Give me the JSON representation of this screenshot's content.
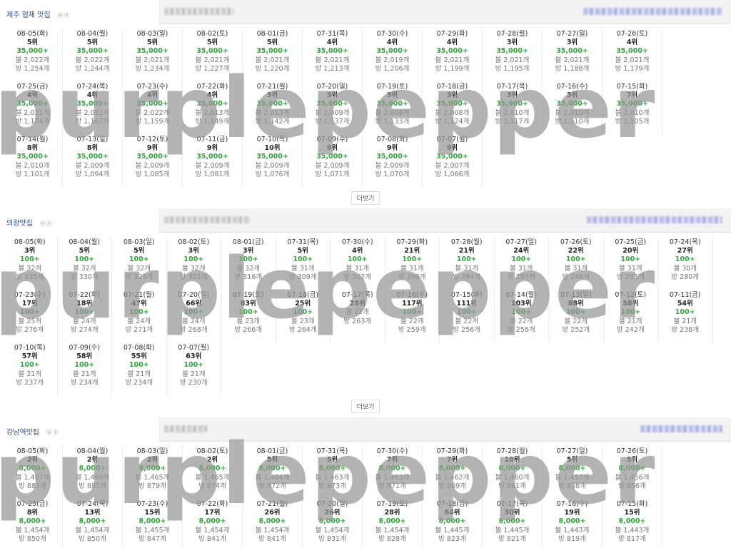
{
  "more_label": "더보기",
  "watermark_text": "purplepepper",
  "sections": [
    {
      "title": "제주 협재 맛집",
      "icons": "ⓜⓟ",
      "cols": 11,
      "has_more": true,
      "cells": [
        {
          "date": "08-05(화)",
          "rank": "5위",
          "search": "35,000+",
          "blog": "블 2,022개",
          "cafe": "방 1,254개"
        },
        {
          "date": "08-04(월)",
          "rank": "5위",
          "search": "35,000+",
          "blog": "블 2,022개",
          "cafe": "방 1,244개"
        },
        {
          "date": "08-03(일)",
          "rank": "5위",
          "search": "35,000+",
          "blog": "블 2,021개",
          "cafe": "방 1,234개"
        },
        {
          "date": "08-02(토)",
          "rank": "5위",
          "search": "35,000+",
          "blog": "블 2,021개",
          "cafe": "방 1,227개"
        },
        {
          "date": "08-01(금)",
          "rank": "5위",
          "search": "35,000+",
          "blog": "블 2,021개",
          "cafe": "방 1,220개"
        },
        {
          "date": "07-31(목)",
          "rank": "4위",
          "search": "35,000+",
          "blog": "블 2,021개",
          "cafe": "방 1,213개"
        },
        {
          "date": "07-30(수)",
          "rank": "4위",
          "search": "35,000+",
          "blog": "블 2,019개",
          "cafe": "방 1,206개"
        },
        {
          "date": "07-29(화)",
          "rank": "4위",
          "search": "35,000+",
          "blog": "블 2,021개",
          "cafe": "방 1,199개"
        },
        {
          "date": "07-28(월)",
          "rank": "3위",
          "search": "35,000+",
          "blog": "블 2,021개",
          "cafe": "방 1,195개"
        },
        {
          "date": "07-27(일)",
          "rank": "3위",
          "search": "35,000+",
          "blog": "블 2,021개",
          "cafe": "방 1,188개"
        },
        {
          "date": "07-26(토)",
          "rank": "4위",
          "search": "35,000+",
          "blog": "블 2,021개",
          "cafe": "방 1,179개"
        },
        {
          "date": "07-25(금)",
          "rank": "4위",
          "search": "35,000+",
          "blog": "블 2,021개",
          "cafe": "방 1,174개"
        },
        {
          "date": "07-24(목)",
          "rank": "4위",
          "search": "35,000+",
          "blog": "블 2,022개",
          "cafe": "방 1,167개"
        },
        {
          "date": "07-23(수)",
          "rank": "4위",
          "search": "35,000+",
          "blog": "블 2,022개",
          "cafe": "방 1,159개"
        },
        {
          "date": "07-22(화)",
          "rank": "4위",
          "search": "35,000+",
          "blog": "블 2,013개",
          "cafe": "방 1,149개"
        },
        {
          "date": "07-21(월)",
          "rank": "3위",
          "search": "35,000+",
          "blog": "블 2,013개",
          "cafe": "방 1,142개"
        },
        {
          "date": "07-20(일)",
          "rank": "3위",
          "search": "35,000+",
          "blog": "블 2,009개",
          "cafe": "방 1,137개"
        },
        {
          "date": "07-19(토)",
          "rank": "3위",
          "search": "35,000+",
          "blog": "블 2,008개",
          "cafe": "방 1,133개"
        },
        {
          "date": "07-18(금)",
          "rank": "3위",
          "search": "35,000+",
          "blog": "블 2,008개",
          "cafe": "방 1,124개"
        },
        {
          "date": "07-17(목)",
          "rank": "3위",
          "search": "35,000+",
          "blog": "블 2,010개",
          "cafe": "방 1,117개"
        },
        {
          "date": "07-16(수)",
          "rank": "3위",
          "search": "35,000+",
          "blog": "블 2,010개",
          "cafe": "방 1,110개"
        },
        {
          "date": "07-15(화)",
          "rank": "7위",
          "search": "35,000+",
          "blog": "블 2,010개",
          "cafe": "방 1,105개"
        },
        {
          "date": "07-14(월)",
          "rank": "8위",
          "search": "35,000+",
          "blog": "블 2,010개",
          "cafe": "방 1,101개"
        },
        {
          "date": "07-13(일)",
          "rank": "8위",
          "search": "35,000+",
          "blog": "블 2,009개",
          "cafe": "방 1,094개"
        },
        {
          "date": "07-12(토)",
          "rank": "9위",
          "search": "35,000+",
          "blog": "블 2,009개",
          "cafe": "방 1,085개"
        },
        {
          "date": "07-11(금)",
          "rank": "9위",
          "search": "35,000+",
          "blog": "블 2,009개",
          "cafe": "방 1,081개"
        },
        {
          "date": "07-10(목)",
          "rank": "10위",
          "search": "35,000+",
          "blog": "블 2,009개",
          "cafe": "방 1,076개"
        },
        {
          "date": "07-09(수)",
          "rank": "9위",
          "search": "35,000+",
          "blog": "블 2,009개",
          "cafe": "방 1,071개"
        },
        {
          "date": "07-08(화)",
          "rank": "9위",
          "search": "35,000+",
          "blog": "블 2,009개",
          "cafe": "방 1,070개"
        },
        {
          "date": "07-07(월)",
          "rank": "9위",
          "search": "35,000+",
          "blog": "블 2,007개",
          "cafe": "방 1,066개"
        }
      ]
    },
    {
      "title": "의왕맛집",
      "icons": "ⓜⓟ",
      "cols": 13,
      "has_more": true,
      "cells": [
        {
          "date": "08-05(화)",
          "rank": "3위",
          "search": "100+",
          "blog": "블 32개",
          "cafe": "방 335개"
        },
        {
          "date": "08-04(월)",
          "rank": "5위",
          "search": "100+",
          "blog": "블 32개",
          "cafe": "방 330개"
        },
        {
          "date": "08-03(일)",
          "rank": "5위",
          "search": "100+",
          "blog": "블 32개",
          "cafe": "방 323개"
        },
        {
          "date": "08-02(토)",
          "rank": "3위",
          "search": "100+",
          "blog": "블 32개",
          "cafe": "방 321개"
        },
        {
          "date": "08-01(금)",
          "rank": "3위",
          "search": "100+",
          "blog": "블 32개",
          "cafe": "방 316개"
        },
        {
          "date": "07-31(목)",
          "rank": "5위",
          "search": "100+",
          "blog": "블 31개",
          "cafe": "방 309개"
        },
        {
          "date": "07-30(수)",
          "rank": "4위",
          "search": "100+",
          "blog": "블 31개",
          "cafe": "방 302개"
        },
        {
          "date": "07-29(화)",
          "rank": "21위",
          "search": "100+",
          "blog": "블 31개",
          "cafe": "방 299개"
        },
        {
          "date": "07-28(월)",
          "rank": "21위",
          "search": "100+",
          "blog": "블 31개",
          "cafe": "방 294개"
        },
        {
          "date": "07-27(일)",
          "rank": "24위",
          "search": "100+",
          "blog": "블 31개",
          "cafe": "방 287개"
        },
        {
          "date": "07-26(토)",
          "rank": "22위",
          "search": "100+",
          "blog": "블 31개",
          "cafe": "방 286개"
        },
        {
          "date": "07-25(금)",
          "rank": "20위",
          "search": "100+",
          "blog": "블 31개",
          "cafe": "방 285개"
        },
        {
          "date": "07-24(목)",
          "rank": "27위",
          "search": "100+",
          "blog": "블 30개",
          "cafe": "방 280개"
        },
        {
          "date": "07-23(수)",
          "rank": "17위",
          "search": "100+",
          "blog": "블 25개",
          "cafe": "방 276개"
        },
        {
          "date": "07-22(화)",
          "rank": "18위",
          "search": "100+",
          "blog": "블 24개",
          "cafe": "방 274개"
        },
        {
          "date": "07-21(월)",
          "rank": "47위",
          "search": "100+",
          "blog": "블 24개",
          "cafe": "방 271개"
        },
        {
          "date": "07-20(일)",
          "rank": "66위",
          "search": "100+",
          "blog": "블 24개",
          "cafe": "방 268개"
        },
        {
          "date": "07-19(토)",
          "rank": "83위",
          "search": "100+",
          "blog": "블 23개",
          "cafe": "방 266개"
        },
        {
          "date": "07-18(금)",
          "rank": "25위",
          "search": "100+",
          "blog": "블 23개",
          "cafe": "방 264개"
        },
        {
          "date": "07-17(목)",
          "rank": "28위",
          "search": "",
          "blog": "블 22개",
          "cafe": "방 263개"
        },
        {
          "date": "07-16(수)",
          "rank": "117위",
          "search": "100+",
          "blog": "블 22개",
          "cafe": "방 259개"
        },
        {
          "date": "07-15(화)",
          "rank": "111위",
          "search": "100+",
          "blog": "블 22개",
          "cafe": "방 256개"
        },
        {
          "date": "07-14(월)",
          "rank": "103위",
          "search": "100+",
          "blog": "블 22개",
          "cafe": "방 256개"
        },
        {
          "date": "07-13(일)",
          "rank": "88위",
          "search": "100+",
          "blog": "블 22개",
          "cafe": "방 252개"
        },
        {
          "date": "07-12(토)",
          "rank": "58위",
          "search": "100+",
          "blog": "블 21개",
          "cafe": "방 242개"
        },
        {
          "date": "07-11(금)",
          "rank": "54위",
          "search": "100+",
          "blog": "블 21개",
          "cafe": "방 238개"
        },
        {
          "date": "07-10(목)",
          "rank": "57위",
          "search": "100+",
          "blog": "블 21개",
          "cafe": "방 237개"
        },
        {
          "date": "07-09(수)",
          "rank": "58위",
          "search": "100+",
          "blog": "블 21개",
          "cafe": "방 234개"
        },
        {
          "date": "07-08(화)",
          "rank": "55위",
          "search": "100+",
          "blog": "블 21개",
          "cafe": "방 234개"
        },
        {
          "date": "07-07(월)",
          "rank": "63위",
          "search": "100+",
          "blog": "블 21개",
          "cafe": "방 230개"
        }
      ]
    },
    {
      "title": "강남역맛집",
      "icons": "ⓜⓟ",
      "cols": 11,
      "has_more": false,
      "cells": [
        {
          "date": "08-05(화)",
          "rank": "2위",
          "search": "8,000+",
          "blog": "블 1,467개",
          "cafe": "방 881개"
        },
        {
          "date": "08-04(월)",
          "rank": "2위",
          "search": "8,000+",
          "blog": "블 1,466개",
          "cafe": "방 881개"
        },
        {
          "date": "08-03(일)",
          "rank": "2위",
          "search": "8,000+",
          "blog": "블 1,465개",
          "cafe": "방 879개"
        },
        {
          "date": "08-02(토)",
          "rank": "2위",
          "search": "8,000+",
          "blog": "블 1,465개",
          "cafe": "방 874개"
        },
        {
          "date": "08-01(금)",
          "rank": "5위",
          "search": "8,000+",
          "blog": "블 1,464개",
          "cafe": "방 872개"
        },
        {
          "date": "07-31(목)",
          "rank": "5위",
          "search": "8,000+",
          "blog": "블 1,463개",
          "cafe": "방 873개"
        },
        {
          "date": "07-30(수)",
          "rank": "7위",
          "search": "8,000+",
          "blog": "블 1,463개",
          "cafe": "방 871개"
        },
        {
          "date": "07-29(화)",
          "rank": "7위",
          "search": "8,000+",
          "blog": "블 1,462개",
          "cafe": "방 869개"
        },
        {
          "date": "07-28(월)",
          "rank": "18위",
          "search": "8,000+",
          "blog": "블 1,460개",
          "cafe": "방 861개"
        },
        {
          "date": "07-27(일)",
          "rank": "5위",
          "search": "8,000+",
          "blog": "블 1,457개",
          "cafe": "방 858개"
        },
        {
          "date": "07-26(토)",
          "rank": "5위",
          "search": "8,000+",
          "blog": "블 1,456개",
          "cafe": "방 856개"
        },
        {
          "date": "07-25(금)",
          "rank": "8위",
          "search": "8,000+",
          "blog": "블 1,454개",
          "cafe": "방 850개"
        },
        {
          "date": "07-24(목)",
          "rank": "13위",
          "search": "8,000+",
          "blog": "블 1,454개",
          "cafe": "방 850개"
        },
        {
          "date": "07-23(수)",
          "rank": "15위",
          "search": "8,000+",
          "blog": "블 1,455개",
          "cafe": "방 847개"
        },
        {
          "date": "07-22(화)",
          "rank": "17위",
          "search": "8,000+",
          "blog": "블 1,454개",
          "cafe": "방 841개"
        },
        {
          "date": "07-21(월)",
          "rank": "26위",
          "search": "8,000+",
          "blog": "블 1,454개",
          "cafe": "방 841개"
        },
        {
          "date": "07-20(일)",
          "rank": "26위",
          "search": "8,000+",
          "blog": "블 1,454개",
          "cafe": "방 831개"
        },
        {
          "date": "07-19(토)",
          "rank": "28위",
          "search": "8,000+",
          "blog": "블 1,454개",
          "cafe": "방 828개"
        },
        {
          "date": "07-18(금)",
          "rank": "64위",
          "search": "8,000+",
          "blog": "블 1,445개",
          "cafe": "방 823개"
        },
        {
          "date": "07-17(목)",
          "rank": "30위",
          "search": "8,000+",
          "blog": "블 1,445개",
          "cafe": "방 821개"
        },
        {
          "date": "07-16(수)",
          "rank": "19위",
          "search": "8,000+",
          "blog": "블 1,443개",
          "cafe": "방 819개"
        },
        {
          "date": "07-15(화)",
          "rank": "15위",
          "search": "8,000+",
          "blog": "블 1,443개",
          "cafe": "방 817개"
        }
      ]
    }
  ]
}
